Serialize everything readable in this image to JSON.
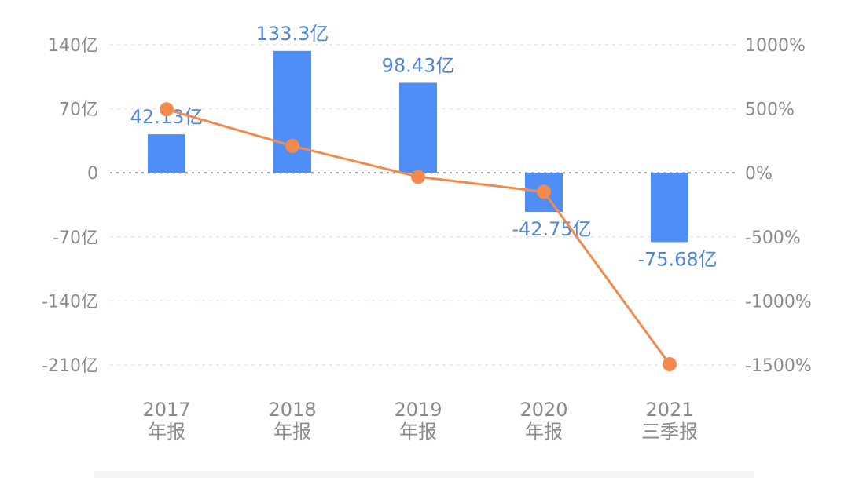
{
  "chart_data": {
    "type": "bar+line",
    "categories": [
      [
        "2017",
        "年报"
      ],
      [
        "2018",
        "年报"
      ],
      [
        "2019",
        "年报"
      ],
      [
        "2020",
        "年报"
      ],
      [
        "2021",
        "三季报"
      ]
    ],
    "series": [
      {
        "type": "bar",
        "axis": "left",
        "values": [
          42.13,
          133.3,
          98.43,
          -42.75,
          -75.68
        ],
        "labels": [
          "42.13亿",
          "133.3亿",
          "98.43亿",
          "-42.75亿",
          "-75.68亿"
        ],
        "color": "#4f8ef7"
      },
      {
        "type": "line",
        "axis": "right",
        "values": [
          496,
          210,
          -31,
          -148,
          -1494
        ],
        "color": "#f28a4e"
      }
    ],
    "left_axis": {
      "ticks": [
        140,
        70,
        0,
        -70,
        -140,
        -210
      ],
      "tick_labels": [
        "140亿",
        "70亿",
        "0",
        "-70亿",
        "-140亿",
        "-210亿"
      ],
      "range": [
        -210,
        140
      ]
    },
    "right_axis": {
      "ticks": [
        1000,
        500,
        0,
        -500,
        -1000,
        -1500
      ],
      "tick_labels": [
        "1000%",
        "500%",
        "0%",
        "-500%",
        "-1000%",
        "-1500%"
      ],
      "range": [
        -1500,
        1000
      ]
    },
    "grid": true,
    "legend": "none"
  }
}
